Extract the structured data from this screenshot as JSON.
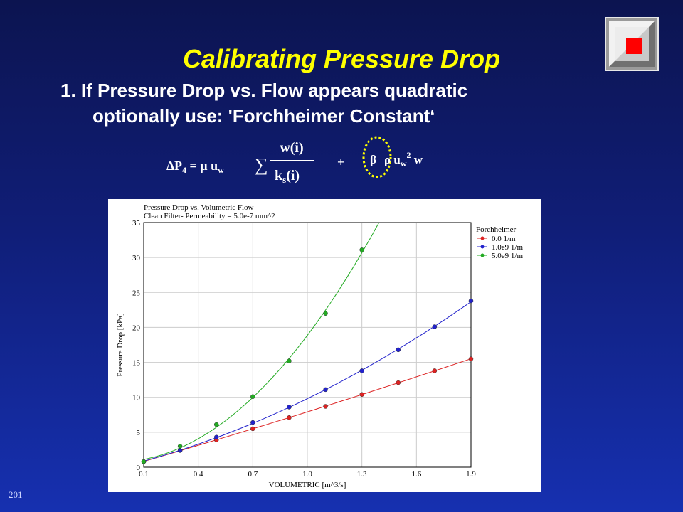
{
  "slide": {
    "title": "Calibrating Pressure Drop",
    "line1": "1.  If Pressure Drop vs. Flow appears quadratic",
    "line2": "optionally use: 'Forchheimer Constant‘",
    "page_number": "201"
  },
  "formula": {
    "delta": "∆",
    "lhs": "P",
    "lhs_sub": "4",
    "mid": " = µ u",
    "mid_sub": "w",
    "sigma": "∑",
    "numerator": "w(i)",
    "den_main": "k",
    "den_sub": "s",
    "den_end": "(i)",
    "plus": "+",
    "beta": "β",
    "term2": "ρ u",
    "term2_sub": "w",
    "term2_sup": "2",
    "term2_end": " w",
    "highlight_color": "#ffff00"
  },
  "colors": {
    "background_top": "#0c1450",
    "background_bottom": "#1630b0",
    "title": "#ffff00",
    "logo_red": "#ff0000"
  },
  "chart_data": {
    "type": "line",
    "title": "Pressure Drop vs. Volumetric Flow",
    "subtitle": "Clean Filter- Permeability = 5.0e-7 mm^2",
    "xlabel": "VOLUMETRIC [m^3/s]",
    "ylabel": "Pressure Drop [kPa]",
    "xlim": [
      0.1,
      1.9
    ],
    "ylim": [
      0,
      35
    ],
    "xticks": [
      "0.1",
      "0.4",
      "0.7",
      "1.0",
      "1.3",
      "1.6",
      "1.9"
    ],
    "yticks": [
      "0",
      "5",
      "10",
      "15",
      "20",
      "25",
      "30",
      "35"
    ],
    "grid": true,
    "legend_title": "Forchheimer",
    "legend_position": "right",
    "series": [
      {
        "name": "0.0 1/m",
        "color": "#dd2222",
        "x": [
          0.1,
          0.3,
          0.5,
          0.7,
          0.9,
          1.1,
          1.3,
          1.5,
          1.7,
          1.9
        ],
        "y": [
          0.8,
          2.4,
          3.9,
          5.5,
          7.1,
          8.7,
          10.4,
          12.1,
          13.8,
          15.5
        ]
      },
      {
        "name": "1.0e9 1/m",
        "color": "#2222cc",
        "x": [
          0.1,
          0.3,
          0.5,
          0.7,
          0.9,
          1.1,
          1.3,
          1.5,
          1.7,
          1.9
        ],
        "y": [
          0.8,
          2.4,
          4.3,
          6.4,
          8.6,
          11.1,
          13.8,
          16.8,
          20.1,
          23.8
        ]
      },
      {
        "name": "5.0e9 1/m",
        "color": "#22aa22",
        "x": [
          0.1,
          0.3,
          0.5,
          0.7,
          0.9,
          1.1,
          1.3
        ],
        "y": [
          0.8,
          3.0,
          6.1,
          10.1,
          15.2,
          22.0,
          31.1
        ]
      }
    ]
  }
}
